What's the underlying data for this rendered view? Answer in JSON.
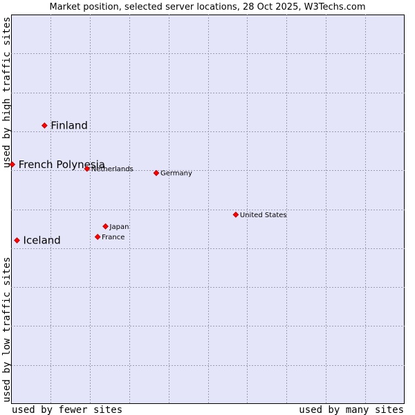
{
  "chart_data": {
    "type": "scatter",
    "title": "Market position, selected server locations, 28 Oct 2025, W3Techs.com",
    "xlabel_left": "used by fewer sites",
    "xlabel_right": "used by many sites",
    "ylabel_top": "used by high traffic sites",
    "ylabel_bottom": "used by low traffic sites",
    "xlim": [
      0,
      100
    ],
    "ylim": [
      0,
      100
    ],
    "grid": true,
    "marker_color": "#ff0000",
    "points": [
      {
        "name": "Finland",
        "x": 8.5,
        "y": 71.5,
        "highlight": true
      },
      {
        "name": "French Polynesia",
        "x": 0.3,
        "y": 61.5,
        "highlight": true
      },
      {
        "name": "Iceland",
        "x": 1.5,
        "y": 42.0,
        "highlight": true
      },
      {
        "name": "Netherlands",
        "x": 19.3,
        "y": 60.4,
        "highlight": false
      },
      {
        "name": "Germany",
        "x": 36.9,
        "y": 59.3,
        "highlight": false
      },
      {
        "name": "United States",
        "x": 57.1,
        "y": 48.6,
        "highlight": false
      },
      {
        "name": "Japan",
        "x": 24.0,
        "y": 45.6,
        "highlight": false
      },
      {
        "name": "France",
        "x": 22.0,
        "y": 42.9,
        "highlight": false
      }
    ]
  }
}
